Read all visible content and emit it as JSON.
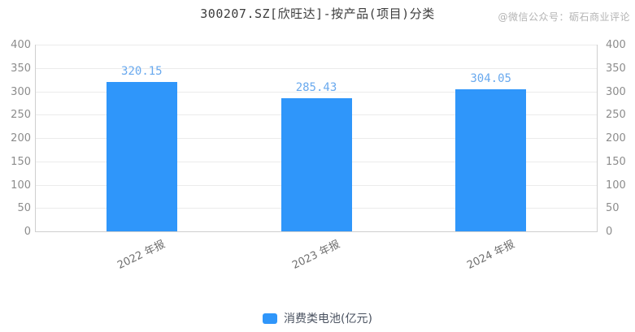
{
  "header": {
    "title": "300207.SZ[欣旺达]-按产品(项目)分类",
    "watermark": "@微信公众号：砺石商业评论"
  },
  "legend": {
    "items": [
      {
        "label": "消费类电池(亿元)",
        "color": "#2f96fa"
      }
    ]
  },
  "colors": {
    "bar": "#2f96fa",
    "value_label": "#69a9ee",
    "axis_text": "#8c8c8c",
    "x_axis_text": "#6f6f6f",
    "gridline": "#ebebeb",
    "axis_line": "#cfcfcf",
    "title_text": "#3d3d3d",
    "watermark_text": "#b3b3b3",
    "legend_text": "#4a5260"
  },
  "chart_data": {
    "type": "bar",
    "title": "300207.SZ[欣旺达]-按产品(项目)分类",
    "categories": [
      "2022 年报",
      "2023 年报",
      "2024 年报"
    ],
    "series": [
      {
        "name": "消费类电池(亿元)",
        "values": [
          320.15,
          285.43,
          304.05
        ]
      }
    ],
    "value_labels": [
      "320.15",
      "285.43",
      "304.05"
    ],
    "xlabel": "",
    "ylabel": "",
    "ylim": [
      0,
      400
    ],
    "yticks": [
      0,
      50,
      100,
      150,
      200,
      250,
      300,
      350,
      400
    ],
    "grid": true,
    "dual_y_axis": true,
    "legend_position": "bottom"
  }
}
